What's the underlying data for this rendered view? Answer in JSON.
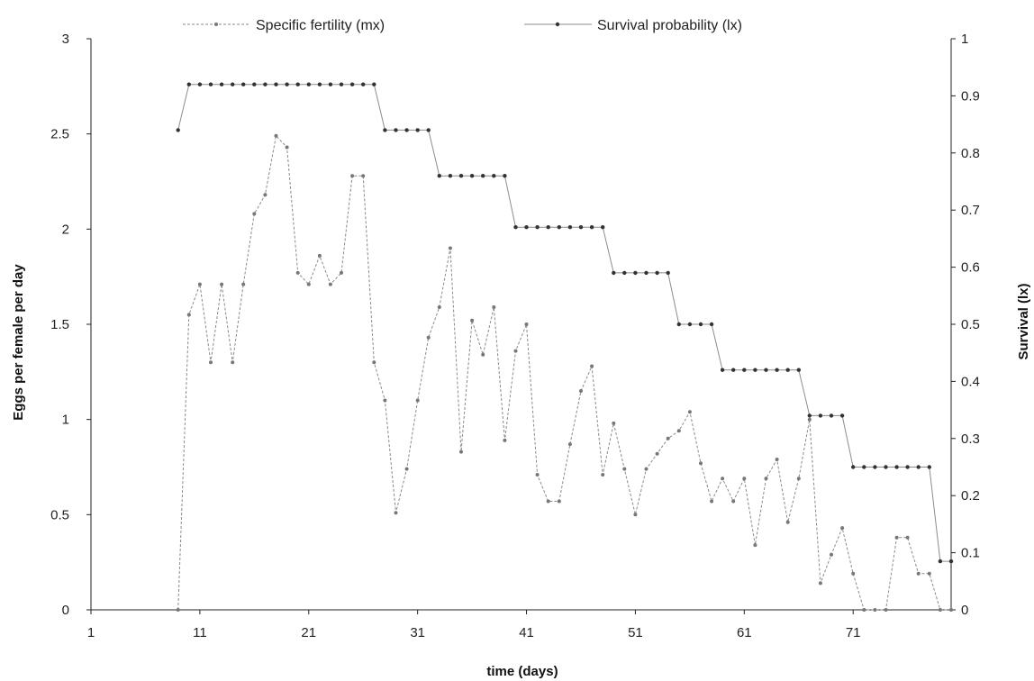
{
  "chart_data": {
    "type": "line",
    "title": "",
    "xlabel": "time (days)",
    "ylabel_left": "Eggs per female per day",
    "ylabel_right": "Survival (lx)",
    "xlim": [
      1,
      80
    ],
    "ylim_left": [
      0,
      3
    ],
    "ylim_right": [
      0,
      1
    ],
    "x_ticks": [
      1,
      11,
      21,
      31,
      41,
      51,
      61,
      71
    ],
    "y_left_ticks": [
      "0",
      "0.5",
      "1",
      "1.5",
      "2",
      "2.5",
      "3"
    ],
    "y_right_ticks": [
      "0",
      "0.1",
      "0.2",
      "0.3",
      "0.4",
      "0.5",
      "0.6",
      "0.7",
      "0.8",
      "0.9",
      "1"
    ],
    "grid": false,
    "legend_position": "top",
    "colors": {
      "fertility": "#8a8a8a",
      "survival": "#8c8c8c",
      "marker": "#333333",
      "axis": "#222222"
    },
    "series": [
      {
        "name": "Specific fertility (mx)",
        "axis": "left",
        "style": "dashed",
        "x": [
          9,
          10,
          11,
          12,
          13,
          14,
          15,
          16,
          17,
          18,
          19,
          20,
          21,
          22,
          23,
          24,
          25,
          26,
          27,
          28,
          29,
          30,
          31,
          32,
          33,
          34,
          35,
          36,
          37,
          38,
          39,
          40,
          41,
          42,
          43,
          44,
          45,
          46,
          47,
          48,
          49,
          50,
          51,
          52,
          53,
          54,
          55,
          56,
          57,
          58,
          59,
          60,
          61,
          62,
          63,
          64,
          65,
          66,
          67,
          68,
          69,
          70,
          71,
          72,
          73,
          74,
          75,
          76,
          77,
          78,
          79,
          80
        ],
        "values": [
          0,
          1.55,
          1.71,
          1.3,
          1.71,
          1.3,
          1.71,
          2.08,
          2.18,
          2.49,
          2.43,
          1.77,
          1.71,
          1.86,
          1.71,
          1.77,
          2.28,
          2.28,
          1.3,
          1.1,
          0.51,
          0.74,
          1.1,
          1.43,
          1.59,
          1.9,
          0.83,
          1.52,
          1.34,
          1.59,
          0.89,
          1.36,
          1.5,
          0.71,
          0.57,
          0.57,
          0.87,
          1.15,
          1.28,
          0.71,
          0.98,
          0.74,
          0.5,
          0.74,
          0.82,
          0.9,
          0.94,
          1.04,
          0.77,
          0.57,
          0.69,
          0.57,
          0.69,
          0.34,
          0.69,
          0.79,
          0.46,
          0.69,
          1.0,
          0.14,
          0.29,
          0.43,
          0.19,
          0,
          0,
          0,
          0.38,
          0.38,
          0.19,
          0.19,
          0,
          0
        ]
      },
      {
        "name": "Survival probability  (lx)",
        "axis": "right",
        "style": "solid",
        "x": [
          9,
          10,
          11,
          12,
          13,
          14,
          15,
          16,
          17,
          18,
          19,
          20,
          21,
          22,
          23,
          24,
          25,
          26,
          27,
          28,
          29,
          30,
          31,
          32,
          33,
          34,
          35,
          36,
          37,
          38,
          39,
          40,
          41,
          42,
          43,
          44,
          45,
          46,
          47,
          48,
          49,
          50,
          51,
          52,
          53,
          54,
          55,
          56,
          57,
          58,
          59,
          60,
          61,
          62,
          63,
          64,
          65,
          66,
          67,
          68,
          69,
          70,
          71,
          72,
          73,
          74,
          75,
          76,
          77,
          78,
          79,
          80
        ],
        "values": [
          0.84,
          0.92,
          0.92,
          0.92,
          0.92,
          0.92,
          0.92,
          0.92,
          0.92,
          0.92,
          0.92,
          0.92,
          0.92,
          0.92,
          0.92,
          0.92,
          0.92,
          0.92,
          0.92,
          0.84,
          0.84,
          0.84,
          0.84,
          0.84,
          0.76,
          0.76,
          0.76,
          0.76,
          0.76,
          0.76,
          0.76,
          0.67,
          0.67,
          0.67,
          0.67,
          0.67,
          0.67,
          0.67,
          0.67,
          0.67,
          0.59,
          0.59,
          0.59,
          0.59,
          0.59,
          0.59,
          0.5,
          0.5,
          0.5,
          0.5,
          0.42,
          0.42,
          0.42,
          0.42,
          0.42,
          0.42,
          0.42,
          0.42,
          0.34,
          0.34,
          0.34,
          0.34,
          0.25,
          0.25,
          0.25,
          0.25,
          0.25,
          0.25,
          0.25,
          0.25,
          0.085,
          0.085
        ]
      }
    ]
  }
}
